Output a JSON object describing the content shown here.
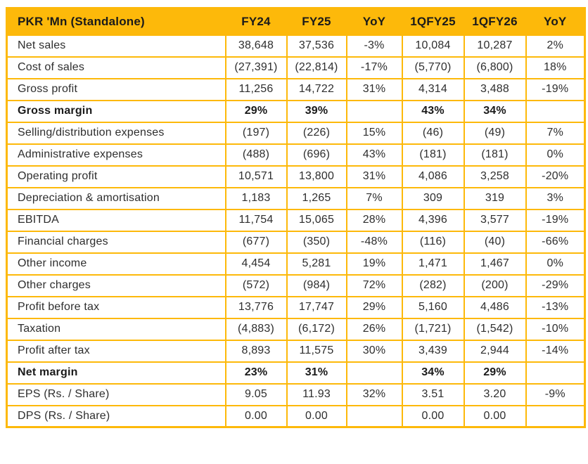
{
  "chart_data": {
    "type": "table",
    "title": "PKR 'Mn (Standalone)",
    "header": {
      "label": "PKR 'Mn (Standalone)",
      "columns": [
        "FY24",
        "FY25",
        "YoY",
        "1QFY25",
        "1QFY26",
        "YoY"
      ]
    },
    "rows": [
      {
        "label": "Net sales",
        "bold": false,
        "values": [
          "38,648",
          "37,536",
          "-3%",
          "10,084",
          "10,287",
          "2%"
        ]
      },
      {
        "label": "Cost of sales",
        "bold": false,
        "values": [
          "(27,391)",
          "(22,814)",
          "-17%",
          "(5,770)",
          "(6,800)",
          "18%"
        ]
      },
      {
        "label": "Gross profit",
        "bold": false,
        "values": [
          "11,256",
          "14,722",
          "31%",
          "4,314",
          "3,488",
          "-19%"
        ]
      },
      {
        "label": "Gross margin",
        "bold": true,
        "values": [
          "29%",
          "39%",
          "",
          "43%",
          "34%",
          ""
        ]
      },
      {
        "label": "Selling/distribution expenses",
        "bold": false,
        "values": [
          "(197)",
          "(226)",
          "15%",
          "(46)",
          "(49)",
          "7%"
        ]
      },
      {
        "label": "Administrative expenses",
        "bold": false,
        "values": [
          "(488)",
          "(696)",
          "43%",
          "(181)",
          "(181)",
          "0%"
        ]
      },
      {
        "label": "Operating profit",
        "bold": false,
        "values": [
          "10,571",
          "13,800",
          "31%",
          "4,086",
          "3,258",
          "-20%"
        ]
      },
      {
        "label": "Depreciation & amortisation",
        "bold": false,
        "values": [
          "1,183",
          "1,265",
          "7%",
          "309",
          "319",
          "3%"
        ]
      },
      {
        "label": "EBITDA",
        "bold": false,
        "values": [
          "11,754",
          "15,065",
          "28%",
          "4,396",
          "3,577",
          "-19%"
        ]
      },
      {
        "label": "Financial charges",
        "bold": false,
        "values": [
          "(677)",
          "(350)",
          "-48%",
          "(116)",
          "(40)",
          "-66%"
        ]
      },
      {
        "label": "Other income",
        "bold": false,
        "values": [
          "4,454",
          "5,281",
          "19%",
          "1,471",
          "1,467",
          "0%"
        ]
      },
      {
        "label": "Other charges",
        "bold": false,
        "values": [
          "(572)",
          "(984)",
          "72%",
          "(282)",
          "(200)",
          "-29%"
        ]
      },
      {
        "label": "Profit before tax",
        "bold": false,
        "values": [
          "13,776",
          "17,747",
          "29%",
          "5,160",
          "4,486",
          "-13%"
        ]
      },
      {
        "label": "Taxation",
        "bold": false,
        "values": [
          "(4,883)",
          "(6,172)",
          "26%",
          "(1,721)",
          "(1,542)",
          "-10%"
        ]
      },
      {
        "label": "Profit after tax",
        "bold": false,
        "values": [
          "8,893",
          "11,575",
          "30%",
          "3,439",
          "2,944",
          "-14%"
        ]
      },
      {
        "label": "Net margin",
        "bold": true,
        "values": [
          "23%",
          "31%",
          "",
          "34%",
          "29%",
          ""
        ]
      },
      {
        "label": "EPS (Rs. / Share)",
        "bold": false,
        "values": [
          "9.05",
          "11.93",
          "32%",
          "3.51",
          "3.20",
          "-9%"
        ]
      },
      {
        "label": "DPS (Rs. / Share)",
        "bold": false,
        "values": [
          "0.00",
          "0.00",
          "",
          "0.00",
          "0.00",
          ""
        ]
      }
    ]
  },
  "colors": {
    "gold": "#FDB90A",
    "text": "#2E2E2E",
    "header_text": "#1A1A1A",
    "background": "#FFFFFF"
  }
}
